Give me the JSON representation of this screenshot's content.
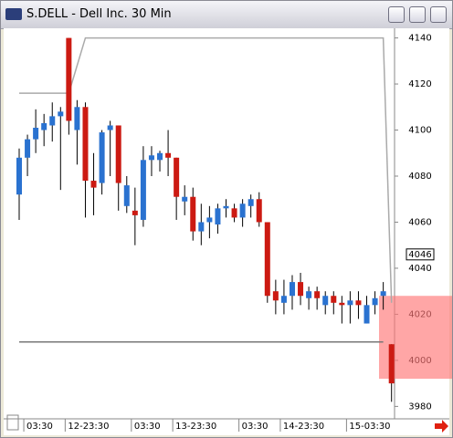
{
  "chart_data": {
    "type": "candlestick",
    "title": "S.DELL - Dell Inc. 30 Min",
    "categories": [
      null,
      "03:30",
      null,
      null,
      null,
      null,
      "12-23:30",
      null,
      null,
      null,
      null,
      null,
      null,
      null,
      "03:30",
      null,
      null,
      null,
      null,
      "13-23:30",
      null,
      null,
      null,
      null,
      null,
      null,
      null,
      "03:30",
      null,
      null,
      null,
      null,
      "14-23:30",
      null,
      null,
      null,
      null,
      null,
      null,
      null,
      "15-03:30",
      null,
      null,
      null,
      null,
      null
    ],
    "open": [
      4072,
      4088,
      4096,
      4100,
      4102,
      4106,
      4140,
      4100,
      4110,
      4078,
      4077,
      4100,
      4102,
      4067,
      4065,
      4061,
      4087,
      4087,
      4090,
      4088,
      4069,
      4071,
      4056,
      4060,
      4059,
      4066,
      4066,
      4062,
      4067,
      4070,
      4060,
      4030,
      4025,
      4028,
      4034,
      4027,
      4030,
      4024,
      4028,
      4025,
      4024,
      4026,
      4016,
      4024,
      4028,
      4007
    ],
    "high": [
      4092,
      4098,
      4109,
      4107,
      4112,
      4110,
      4140,
      4113,
      4112,
      4090,
      4100,
      4104,
      4102,
      4080,
      4075,
      4093,
      4093,
      4091,
      4100,
      4088,
      4076,
      4075,
      4068,
      4067,
      4068,
      4070,
      4068,
      4070,
      4072,
      4073,
      4060,
      4035,
      4035,
      4037,
      4038,
      4032,
      4032,
      4030,
      4030,
      4028,
      4030,
      4030,
      4028,
      4030,
      4034,
      4007
    ],
    "low": [
      4061,
      4080,
      4090,
      4093,
      4095,
      4074,
      4098,
      4085,
      4062,
      4063,
      4072,
      4080,
      4065,
      4064,
      4050,
      4058,
      4080,
      4082,
      4080,
      4061,
      4063,
      4052,
      4050,
      4053,
      4055,
      4062,
      4060,
      4058,
      4062,
      4058,
      4025,
      4020,
      4020,
      4022,
      4024,
      4022,
      4022,
      4020,
      4020,
      4016,
      4016,
      4018,
      4016,
      4020,
      4022,
      3982
    ],
    "close": [
      4088,
      4096,
      4101,
      4103,
      4106,
      4108,
      4104,
      4110,
      4078,
      4075,
      4099,
      4102,
      4077,
      4076,
      4063,
      4087,
      4089,
      4090,
      4088,
      4071,
      4071,
      4056,
      4060,
      4062,
      4066,
      4067,
      4062,
      4068,
      4070,
      4060,
      4028,
      4026,
      4028,
      4034,
      4028,
      4030,
      4027,
      4028,
      4025,
      4024,
      4026,
      4024,
      4024,
      4027,
      4030,
      3990
    ],
    "up_color": "#2a72d0",
    "down_color": "#cc1a12",
    "band_upper": [
      4116,
      4116,
      4116,
      4116,
      4116,
      4116,
      4116,
      4128,
      4140,
      4140,
      4140,
      4140,
      4140,
      4140,
      4140,
      4140,
      4140,
      4140,
      4140,
      4140,
      4140,
      4140,
      4140,
      4140,
      4140,
      4140,
      4140,
      4140,
      4140,
      4140,
      4140,
      4140,
      4140,
      4140,
      4140,
      4140,
      4140,
      4140,
      4140,
      4140,
      4140,
      4140,
      4140,
      4140,
      4140,
      4025
    ],
    "band_lower": 4008,
    "zone": [
      3992,
      4028
    ],
    "last": 4046,
    "ylim": [
      3975,
      4143
    ],
    "yticks": [
      3980,
      4000,
      4020,
      4040,
      4060,
      4080,
      4100,
      4120,
      4140
    ]
  }
}
